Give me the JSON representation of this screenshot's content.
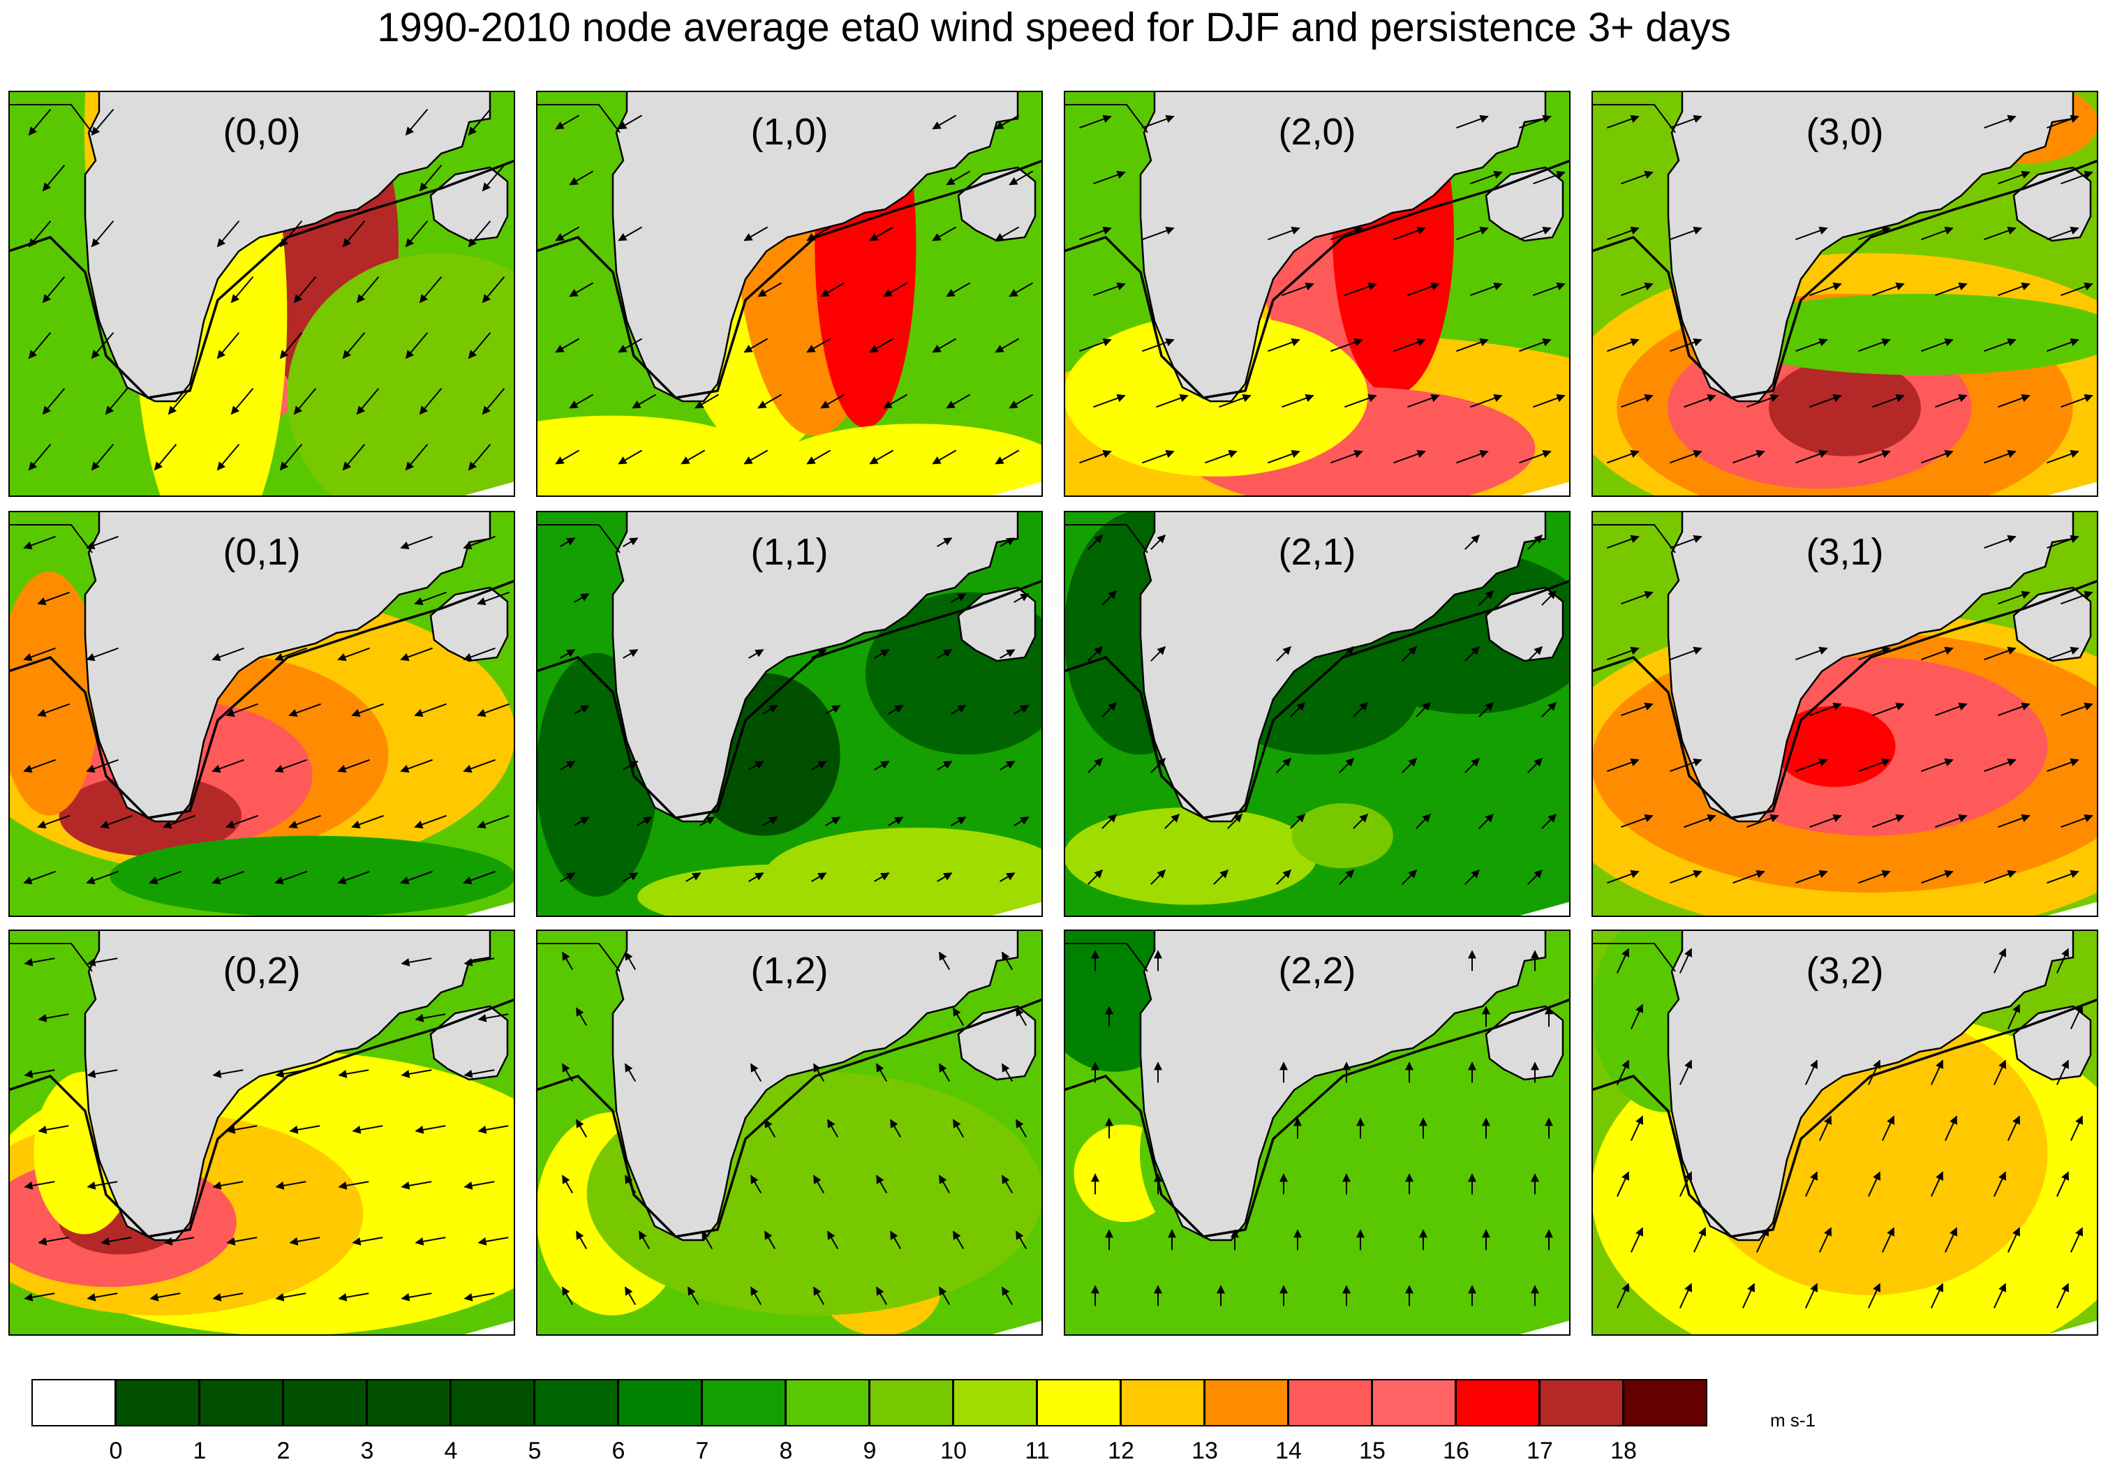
{
  "title": "1990-2010 node average eta0 wind speed for DJF and persistence 3+ days",
  "colors": {
    "land": "#dcdcdc",
    "scale": [
      "#ffffff",
      "#005000",
      "#005000",
      "#005000",
      "#005000",
      "#005000",
      "#006400",
      "#008200",
      "#14a000",
      "#5ac800",
      "#78c800",
      "#a0dc00",
      "#ffff00",
      "#ffc800",
      "#ff8c00",
      "#ff5a5a",
      "#ff6464",
      "#ff0000",
      "#b42828",
      "#640000"
    ]
  },
  "colorbar": {
    "tick_labels": [
      "0",
      "1",
      "2",
      "3",
      "4",
      "5",
      "6",
      "7",
      "8",
      "9",
      "10",
      "11",
      "12",
      "13",
      "14",
      "15",
      "16",
      "17",
      "18"
    ],
    "units": "m s-1"
  },
  "panels": [
    {
      "label": "(0,0)",
      "row": 0,
      "col": 0,
      "background_speed": 9,
      "blobs": [
        [
          0.4,
          0.9,
          0.25,
          0.75,
          13
        ],
        [
          0.45,
          0.82,
          0.22,
          0.68,
          15
        ],
        [
          0.52,
          0.75,
          0.18,
          0.55,
          16
        ],
        [
          0.63,
          0.62,
          0.14,
          0.4,
          18
        ],
        [
          0.4,
          0.45,
          0.15,
          0.6,
          12
        ],
        [
          0.85,
          0.25,
          0.3,
          0.35,
          10
        ]
      ],
      "wind_direction_deg": 230,
      "wind_strength": 1.0
    },
    {
      "label": "(1,0)",
      "row": 0,
      "col": 1,
      "background_speed": 9,
      "blobs": [
        [
          0.45,
          0.85,
          0.22,
          0.75,
          12
        ],
        [
          0.55,
          0.75,
          0.16,
          0.6,
          14
        ],
        [
          0.65,
          0.62,
          0.1,
          0.45,
          17
        ],
        [
          0.15,
          0.05,
          0.35,
          0.15,
          12
        ],
        [
          0.75,
          0.06,
          0.3,
          0.12,
          12
        ]
      ],
      "wind_direction_deg": 210,
      "wind_strength": 0.8
    },
    {
      "label": "(2,0)",
      "row": 0,
      "col": 2,
      "background_speed": 9,
      "blobs": [
        [
          0.55,
          0.15,
          0.7,
          0.25,
          13
        ],
        [
          0.5,
          0.85,
          0.25,
          0.7,
          13
        ],
        [
          0.55,
          0.78,
          0.18,
          0.55,
          15
        ],
        [
          0.65,
          0.65,
          0.12,
          0.4,
          17
        ],
        [
          0.58,
          0.12,
          0.35,
          0.15,
          15
        ],
        [
          0.3,
          0.25,
          0.3,
          0.2,
          12
        ]
      ],
      "wind_direction_deg": 20,
      "wind_strength": 1.0
    },
    {
      "label": "(3,0)",
      "row": 0,
      "col": 3,
      "background_speed": 10,
      "blobs": [
        [
          0.55,
          0.25,
          0.6,
          0.35,
          13
        ],
        [
          0.5,
          0.22,
          0.45,
          0.28,
          14
        ],
        [
          0.45,
          0.22,
          0.3,
          0.2,
          15
        ],
        [
          0.5,
          0.22,
          0.15,
          0.12,
          18
        ],
        [
          0.85,
          0.92,
          0.15,
          0.1,
          14
        ],
        [
          0.65,
          0.4,
          0.4,
          0.1,
          9
        ]
      ],
      "wind_direction_deg": 20,
      "wind_strength": 1.0
    },
    {
      "label": "(0,1)",
      "row": 1,
      "col": 0,
      "background_speed": 9,
      "blobs": [
        [
          0.45,
          0.45,
          0.55,
          0.35,
          13
        ],
        [
          0.4,
          0.4,
          0.35,
          0.25,
          14
        ],
        [
          0.35,
          0.35,
          0.25,
          0.18,
          15
        ],
        [
          0.28,
          0.25,
          0.18,
          0.1,
          18
        ],
        [
          0.08,
          0.55,
          0.1,
          0.3,
          14
        ],
        [
          0.6,
          0.1,
          0.4,
          0.1,
          8
        ]
      ],
      "wind_direction_deg": 200,
      "wind_strength": 1.0
    },
    {
      "label": "(1,1)",
      "row": 1,
      "col": 1,
      "background_speed": 8,
      "blobs": [
        [
          0.45,
          0.4,
          0.15,
          0.2,
          5
        ],
        [
          0.12,
          0.35,
          0.12,
          0.3,
          6
        ],
        [
          0.75,
          0.1,
          0.3,
          0.12,
          11
        ],
        [
          0.85,
          0.6,
          0.2,
          0.2,
          6
        ],
        [
          0.5,
          0.05,
          0.3,
          0.08,
          11
        ]
      ],
      "wind_direction_deg": 30,
      "wind_strength": 0.5
    },
    {
      "label": "(2,1)",
      "row": 1,
      "col": 2,
      "background_speed": 8,
      "blobs": [
        [
          0.5,
          0.55,
          0.2,
          0.15,
          6
        ],
        [
          0.8,
          0.7,
          0.25,
          0.2,
          6
        ],
        [
          0.25,
          0.15,
          0.25,
          0.12,
          11
        ],
        [
          0.15,
          0.7,
          0.15,
          0.3,
          6
        ],
        [
          0.55,
          0.2,
          0.1,
          0.08,
          10
        ]
      ],
      "wind_direction_deg": 45,
      "wind_strength": 0.6
    },
    {
      "label": "(3,1)",
      "row": 1,
      "col": 3,
      "background_speed": 10,
      "blobs": [
        [
          0.55,
          0.35,
          0.65,
          0.4,
          13
        ],
        [
          0.55,
          0.38,
          0.55,
          0.32,
          14
        ],
        [
          0.55,
          0.42,
          0.35,
          0.22,
          15
        ],
        [
          0.48,
          0.42,
          0.12,
          0.1,
          17
        ]
      ],
      "wind_direction_deg": 20,
      "wind_strength": 1.0
    },
    {
      "label": "(0,2)",
      "row": 2,
      "col": 0,
      "background_speed": 9,
      "blobs": [
        [
          0.55,
          0.35,
          0.6,
          0.35,
          12
        ],
        [
          0.3,
          0.3,
          0.4,
          0.25,
          13
        ],
        [
          0.2,
          0.28,
          0.25,
          0.16,
          15
        ],
        [
          0.22,
          0.28,
          0.12,
          0.08,
          18
        ],
        [
          0.15,
          0.45,
          0.1,
          0.2,
          12
        ]
      ],
      "wind_direction_deg": 190,
      "wind_strength": 0.9
    },
    {
      "label": "(1,2)",
      "row": 2,
      "col": 1,
      "background_speed": 9,
      "blobs": [
        [
          0.15,
          0.3,
          0.15,
          0.25,
          12
        ],
        [
          0.22,
          0.25,
          0.08,
          0.06,
          15
        ],
        [
          0.68,
          0.12,
          0.12,
          0.12,
          13
        ],
        [
          0.55,
          0.35,
          0.45,
          0.3,
          10
        ]
      ],
      "wind_direction_deg": 120,
      "wind_strength": 0.6
    },
    {
      "label": "(2,2)",
      "row": 2,
      "col": 2,
      "background_speed": 9,
      "blobs": [
        [
          0.12,
          0.4,
          0.1,
          0.12,
          12
        ],
        [
          0.6,
          0.45,
          0.45,
          0.4,
          9
        ],
        [
          0.1,
          0.85,
          0.15,
          0.2,
          7
        ]
      ],
      "wind_direction_deg": 90,
      "wind_strength": 0.6
    },
    {
      "label": "(3,2)",
      "row": 2,
      "col": 3,
      "background_speed": 10,
      "blobs": [
        [
          0.55,
          0.35,
          0.55,
          0.45,
          12
        ],
        [
          0.55,
          0.45,
          0.35,
          0.35,
          13
        ],
        [
          0.15,
          0.8,
          0.15,
          0.25,
          9
        ]
      ],
      "wind_direction_deg": 65,
      "wind_strength": 0.8
    }
  ]
}
